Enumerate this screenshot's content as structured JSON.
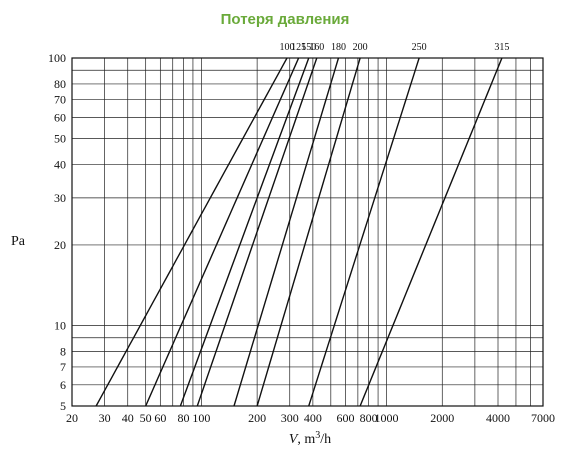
{
  "chart_data": {
    "type": "line",
    "title": "Потеря давления",
    "xlabel_italic": "V",
    "xlabel_rest": ", m",
    "xlabel_sup": "3",
    "xlabel_tail": "/h",
    "ylabel": "Pa",
    "x_scale": "log",
    "y_scale": "log",
    "xlim": [
      20,
      7000
    ],
    "ylim": [
      5,
      100
    ],
    "grid": true,
    "x_ticks": [
      {
        "value": 20,
        "label": "20"
      },
      {
        "value": 30,
        "label": "30"
      },
      {
        "value": 40,
        "label": "40"
      },
      {
        "value": 50,
        "label": "50"
      },
      {
        "value": 60,
        "label": "60"
      },
      {
        "value": 80,
        "label": "80"
      },
      {
        "value": 100,
        "label": "100"
      },
      {
        "value": 200,
        "label": "200"
      },
      {
        "value": 300,
        "label": "300"
      },
      {
        "value": 400,
        "label": "400"
      },
      {
        "value": 600,
        "label": "600"
      },
      {
        "value": 800,
        "label": "800"
      },
      {
        "value": 1000,
        "label": "1000"
      },
      {
        "value": 2000,
        "label": "2000"
      },
      {
        "value": 4000,
        "label": "4000"
      },
      {
        "value": 7000,
        "label": "7000"
      }
    ],
    "x_grid": [
      20,
      30,
      40,
      50,
      60,
      70,
      80,
      90,
      100,
      200,
      300,
      400,
      500,
      600,
      700,
      800,
      900,
      1000,
      2000,
      3000,
      4000,
      5000,
      6000,
      7000
    ],
    "y_ticks": [
      {
        "value": 5,
        "label": "5"
      },
      {
        "value": 6,
        "label": "6"
      },
      {
        "value": 7,
        "label": "7"
      },
      {
        "value": 8,
        "label": "8"
      },
      {
        "value": 10,
        "label": "10"
      },
      {
        "value": 20,
        "label": "20"
      },
      {
        "value": 30,
        "label": "30"
      },
      {
        "value": 40,
        "label": "40"
      },
      {
        "value": 50,
        "label": "50"
      },
      {
        "value": 60,
        "label": "60"
      },
      {
        "value": 70,
        "label": "70"
      },
      {
        "value": 80,
        "label": "80"
      },
      {
        "value": 100,
        "label": "100"
      }
    ],
    "y_grid": [
      5,
      6,
      7,
      8,
      9,
      10,
      20,
      30,
      40,
      50,
      60,
      70,
      80,
      90,
      100
    ],
    "series": [
      {
        "name": "100",
        "points": [
          [
            27,
            5
          ],
          [
            290,
            100
          ]
        ]
      },
      {
        "name": "125",
        "points": [
          [
            50,
            5
          ],
          [
            335,
            100
          ]
        ]
      },
      {
        "name": "150",
        "points": [
          [
            77,
            5
          ],
          [
            380,
            100
          ]
        ]
      },
      {
        "name": "160",
        "points": [
          [
            95,
            5
          ],
          [
            420,
            100
          ]
        ]
      },
      {
        "name": "180",
        "points": [
          [
            150,
            5
          ],
          [
            550,
            100
          ]
        ]
      },
      {
        "name": "200",
        "points": [
          [
            200,
            5
          ],
          [
            720,
            100
          ]
        ]
      },
      {
        "name": "250",
        "points": [
          [
            380,
            5
          ],
          [
            1500,
            100
          ]
        ]
      },
      {
        "name": "315",
        "points": [
          [
            720,
            5
          ],
          [
            4200,
            100
          ]
        ]
      }
    ]
  }
}
